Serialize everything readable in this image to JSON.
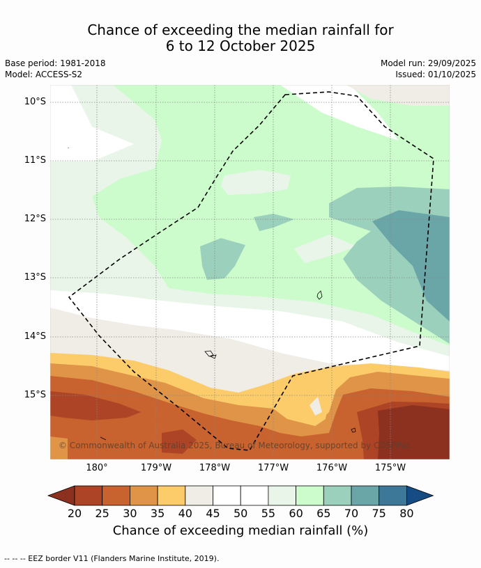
{
  "title": {
    "line1": "Chance of exceeding the median rainfall for",
    "line2": "6 to 12 October 2025"
  },
  "info": {
    "base_period": "Base period: 1981-2018",
    "model": "Model: ACCESS-S2",
    "model_run": "Model run: 29/09/2025",
    "issued": "Issued: 01/10/2025"
  },
  "axes": {
    "lat_labels": [
      "10°S",
      "11°S",
      "12°S",
      "13°S",
      "14°S",
      "15°S"
    ],
    "lon_labels": [
      "180°",
      "179°W",
      "178°W",
      "177°W",
      "176°W",
      "175°W"
    ]
  },
  "copyright": "© Commonwealth of Australia 2025, Bureau of Meteorology, supported by COSPPac",
  "colorbar": {
    "ticks": [
      "20",
      "25",
      "30",
      "35",
      "40",
      "45",
      "50",
      "55",
      "60",
      "65",
      "70",
      "75",
      "80"
    ],
    "colors": [
      "#ad4426",
      "#c8622e",
      "#df9448",
      "#fdcc6a",
      "#f0ece6",
      "#ffffff",
      "#ffffff",
      "#eaf5ea",
      "#ccfccc",
      "#9bd0bc",
      "#6aa5a8",
      "#3e7898"
    ],
    "under_color": "#8c3020",
    "over_color": "#154c84",
    "label": "Chance of exceeding median rainfall (%)"
  },
  "footer": "--  --  -- EEZ border V11 (Flanders Marine Institute, 2019)."
}
